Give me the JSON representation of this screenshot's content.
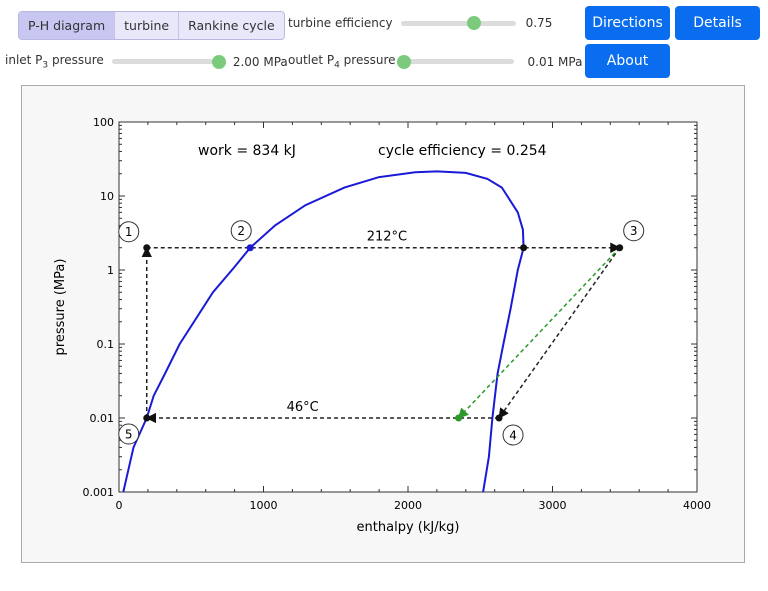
{
  "tabs": [
    "P-H diagram",
    "turbine",
    "Rankine cycle"
  ],
  "controls": {
    "turbine_efficiency": {
      "label": "turbine efficiency",
      "value": "0.75",
      "fraction": 0.64
    },
    "inlet_pressure": {
      "label_prefix": "inlet P",
      "label_sub": "3",
      "label_suffix": " pressure",
      "value": "2.00 MPa",
      "fraction": 1.0
    },
    "outlet_pressure": {
      "label_prefix": "outlet P",
      "label_sub": "4",
      "label_suffix": " pressure",
      "value": "0.01 MPa",
      "fraction": 0.0
    }
  },
  "buttons": {
    "directions": "Directions",
    "details": "Details",
    "about": "About"
  },
  "colors": {
    "dome": "#1a1ad6",
    "actual_path": "#2a9a2a",
    "ideal_path": "#222222",
    "button": "#0a6df0"
  },
  "chart_data": {
    "type": "line",
    "xlabel": "enthalpy (kJ/kg)",
    "ylabel": "pressure (MPa)",
    "xlim": [
      0,
      4000
    ],
    "ylim": [
      0.001,
      100
    ],
    "yscale": "log",
    "xticks": [
      "0",
      "1000",
      "2000",
      "3000",
      "4000"
    ],
    "yticks": [
      "0.001",
      "0.01",
      "0.1",
      "1",
      "10",
      "100"
    ],
    "annotations": {
      "work": "work = 834 kJ",
      "efficiency": "cycle efficiency = 0.254",
      "t_high": "212°C",
      "t_low": "46°C"
    },
    "saturation_dome": [
      [
        30,
        0.001
      ],
      [
        100,
        0.004
      ],
      [
        192,
        0.01
      ],
      [
        240,
        0.02
      ],
      [
        310,
        0.037
      ],
      [
        420,
        0.1
      ],
      [
        650,
        0.5
      ],
      [
        800,
        1.1
      ],
      [
        908,
        2
      ],
      [
        1080,
        4
      ],
      [
        1290,
        7.5
      ],
      [
        1560,
        13
      ],
      [
        1800,
        18
      ],
      [
        2050,
        21
      ],
      [
        2200,
        21.5
      ],
      [
        2400,
        20.5
      ],
      [
        2550,
        17
      ],
      [
        2650,
        13
      ],
      [
        2760,
        6
      ],
      [
        2795,
        3.5
      ],
      [
        2800,
        2
      ],
      [
        2760,
        1
      ],
      [
        2710,
        0.3
      ],
      [
        2660,
        0.1
      ],
      [
        2620,
        0.04
      ],
      [
        2584,
        0.01
      ],
      [
        2560,
        0.003
      ],
      [
        2520,
        0.001
      ]
    ],
    "points": [
      {
        "label": "1",
        "h": 192,
        "p": 2
      },
      {
        "label": "2",
        "h": 908,
        "p": 2
      },
      {
        "label": "sat",
        "h": 2800,
        "p": 2
      },
      {
        "label": "3",
        "h": 3465,
        "p": 2
      },
      {
        "label": "4",
        "h": 2630,
        "p": 0.01
      },
      {
        "label": "5",
        "h": 192,
        "p": 0.01
      },
      {
        "label": "4s",
        "h": 2350,
        "p": 0.01
      }
    ]
  }
}
